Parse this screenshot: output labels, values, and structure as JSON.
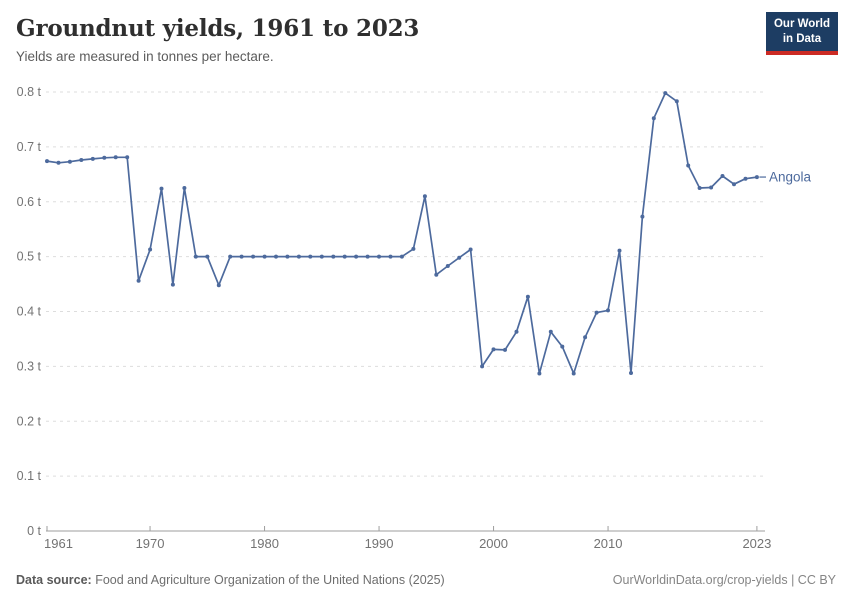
{
  "header": {
    "title": "Groundnut yields, 1961 to 2023",
    "subtitle": "Yields are measured in tonnes per hectare.",
    "logo": {
      "line1": "Our World",
      "line2": "in Data",
      "bg_color": "#1d3d63",
      "accent_color": "#cc2b24"
    }
  },
  "colors": {
    "line": "#4D6A9D",
    "grid": "#dddddd",
    "axis": "#9e9e9e",
    "tick_label": "#737373",
    "series_label": "#4D6A9D"
  },
  "chart_data": {
    "type": "line",
    "title": "Groundnut yields, 1961 to 2023",
    "subtitle": "Yields are measured in tonnes per hectare.",
    "unit": "t",
    "xlim": [
      1961,
      2023
    ],
    "ylim": [
      0,
      0.8
    ],
    "x_ticks": [
      1961,
      1970,
      1980,
      1990,
      2000,
      2010,
      2023
    ],
    "y_ticks": [
      0,
      0.1,
      0.2,
      0.3,
      0.4,
      0.5,
      0.6,
      0.7,
      0.8
    ],
    "grid": "horizontal-dashed",
    "legend_position": "end-of-line-label",
    "x": [
      1961,
      1962,
      1963,
      1964,
      1965,
      1966,
      1967,
      1968,
      1969,
      1970,
      1971,
      1972,
      1973,
      1974,
      1975,
      1976,
      1977,
      1978,
      1979,
      1980,
      1981,
      1982,
      1983,
      1984,
      1985,
      1986,
      1987,
      1988,
      1989,
      1990,
      1991,
      1992,
      1993,
      1994,
      1995,
      1996,
      1997,
      1998,
      1999,
      2000,
      2001,
      2002,
      2003,
      2004,
      2005,
      2006,
      2007,
      2008,
      2009,
      2010,
      2011,
      2012,
      2013,
      2014,
      2015,
      2016,
      2017,
      2018,
      2019,
      2020,
      2021,
      2022,
      2023
    ],
    "series": [
      {
        "name": "Angola",
        "color": "#4D6A9D",
        "values": [
          0.674,
          0.671,
          0.673,
          0.676,
          0.678,
          0.68,
          0.681,
          0.681,
          0.456,
          0.513,
          0.624,
          0.449,
          0.625,
          0.5,
          0.5,
          0.448,
          0.5,
          0.5,
          0.5,
          0.5,
          0.5,
          0.5,
          0.5,
          0.5,
          0.5,
          0.5,
          0.5,
          0.5,
          0.5,
          0.5,
          0.5,
          0.5,
          0.514,
          0.61,
          0.467,
          0.483,
          0.498,
          0.513,
          0.3,
          0.331,
          0.33,
          0.363,
          0.427,
          0.287,
          0.363,
          0.336,
          0.287,
          0.353,
          0.398,
          0.402,
          0.511,
          0.288,
          0.573,
          0.752,
          0.798,
          0.783,
          0.666,
          0.625,
          0.626,
          0.647,
          0.632,
          0.642,
          0.645
        ]
      }
    ]
  },
  "footer": {
    "source_label": "Data source:",
    "source_text": " Food and Agriculture Organization of the United Nations (2025)",
    "link_text": "OurWorldinData.org/crop-yields | CC BY"
  }
}
